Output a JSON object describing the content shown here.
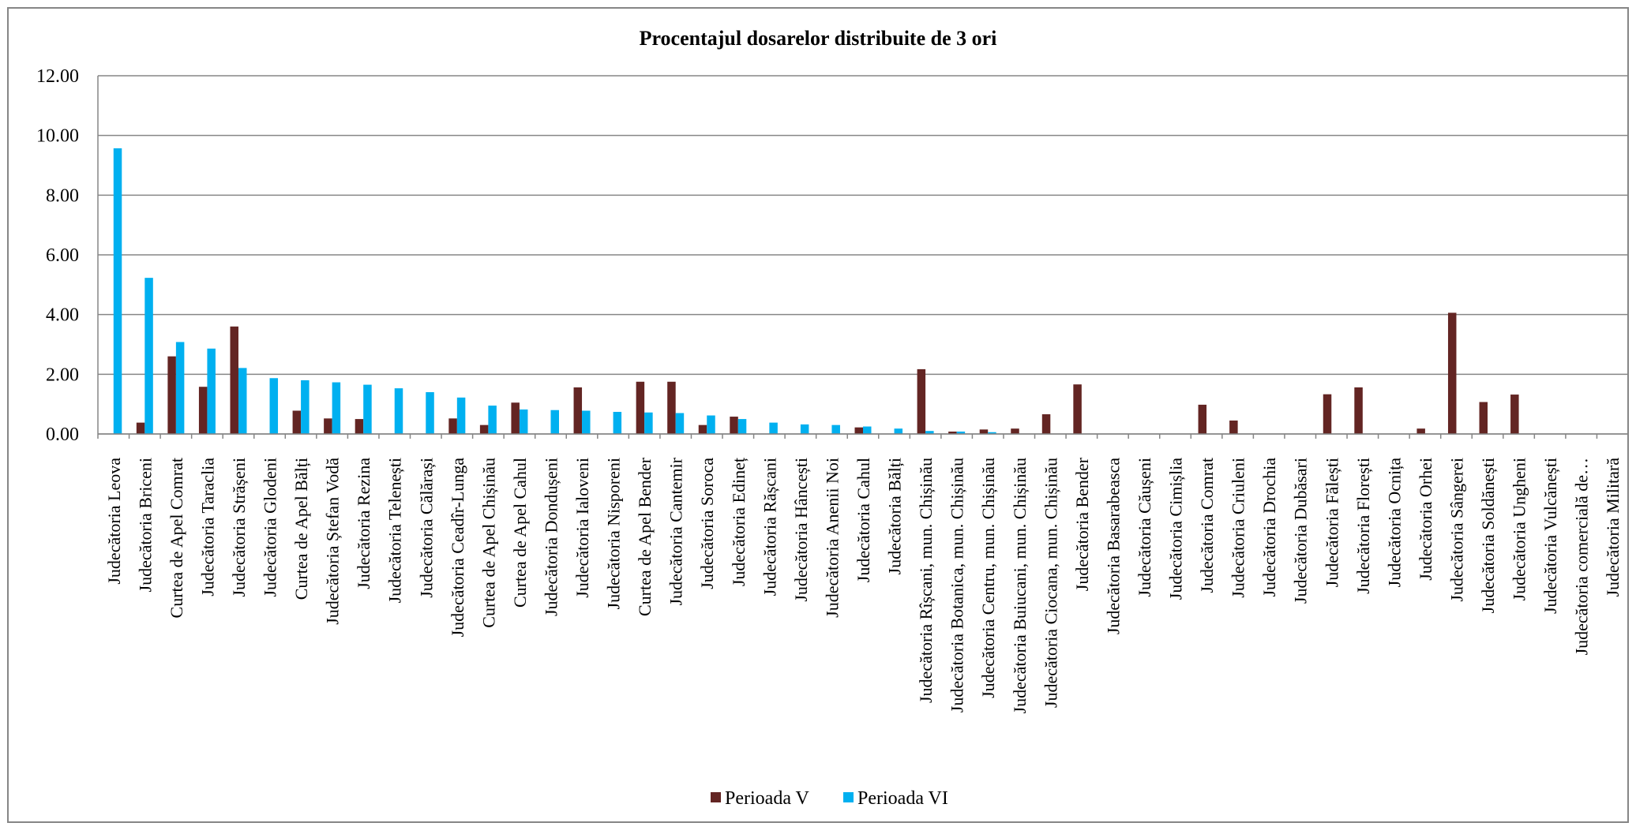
{
  "chart_data": {
    "type": "bar",
    "title": "Procentajul dosarelor distribuite de 3 ori",
    "xlabel": "",
    "ylabel": "",
    "ylim": [
      0,
      12
    ],
    "yticks": [
      "0.00",
      "2.00",
      "4.00",
      "6.00",
      "8.00",
      "10.00",
      "12.00"
    ],
    "grid": true,
    "legend_position": "bottom",
    "categories": [
      "Judecătoria Leova",
      "Judecătoria Briceni",
      "Curtea de Apel Comrat",
      "Judecătoria Taraclia",
      "Judecătoria Strășeni",
      "Judecătoria Glodeni",
      "Curtea de Apel Bălți",
      "Judecătoria Ștefan Vodă",
      "Judecătoria Rezina",
      "Judecătoria Telenești",
      "Judecătoria Călărași",
      "Judecătoria Ceadîr-Lunga",
      "Curtea de Apel Chișinău",
      "Curtea de Apel Cahul",
      "Judecătoria Dondușeni",
      "Judecătoria Ialoveni",
      "Judecătoria Nisporeni",
      "Curtea de Apel Bender",
      "Judecătoria Cantemir",
      "Judecătoria Soroca",
      "Judecătoria Edineț",
      "Judecătoria Rășcani",
      "Judecătoria Hâncești",
      "Judecătoria Anenii Noi",
      "Judecătoria Cahul",
      "Judecătoria Bălți",
      "Judecătoria Rîșcani, mun. Chișinău",
      "Judecătoria Botanica, mun. Chișinău",
      "Judecătoria Centru, mun. Chișinău",
      "Judecătoria Buiucani, mun. Chișinău",
      "Judecătoria Ciocana, mun. Chișinău",
      "Judecătoria Bender",
      "Judecătoria Basarabeasca",
      "Judecătoria Căușeni",
      "Judecătoria Cimișlia",
      "Judecătoria Comrat",
      "Judecătoria Criuleni",
      "Judecătoria Drochia",
      "Judecătoria Dubăsari",
      "Judecătoria Fălești",
      "Judecătoria Florești",
      "Judecătoria Ocnița",
      "Judecătoria Orhei",
      "Judecătoria Sângerei",
      "Judecătoria Soldănești",
      "Judecătoria Ungheni",
      "Judecătoria Vulcănești",
      "Judecătoria comercială de…",
      "Judecătoria Militară"
    ],
    "series": [
      {
        "name": "Perioada V",
        "color": "#632523",
        "values": [
          0,
          0.38,
          2.6,
          1.58,
          3.6,
          0,
          0.78,
          0.52,
          0.5,
          0,
          0,
          0.52,
          0.3,
          1.05,
          0,
          1.56,
          0,
          1.75,
          1.75,
          0.3,
          0.58,
          0,
          0,
          0,
          0.22,
          0,
          2.17,
          0.08,
          0.15,
          0.18,
          0.66,
          1.66,
          0,
          0,
          0,
          0.98,
          0.45,
          0,
          0,
          1.33,
          1.56,
          0,
          0.18,
          4.06,
          1.07,
          1.32,
          0,
          0,
          0
        ]
      },
      {
        "name": "Perioada VI",
        "color": "#00B0F0",
        "values": [
          9.57,
          5.23,
          3.08,
          2.86,
          2.21,
          1.87,
          1.8,
          1.73,
          1.65,
          1.53,
          1.4,
          1.22,
          0.95,
          0.82,
          0.8,
          0.78,
          0.74,
          0.72,
          0.7,
          0.62,
          0.5,
          0.38,
          0.32,
          0.3,
          0.25,
          0.18,
          0.1,
          0.08,
          0.06,
          0,
          0,
          0,
          0,
          0,
          0,
          0,
          0,
          0,
          0,
          0,
          0,
          0,
          0,
          0,
          0,
          0,
          0,
          0,
          0
        ]
      }
    ]
  }
}
